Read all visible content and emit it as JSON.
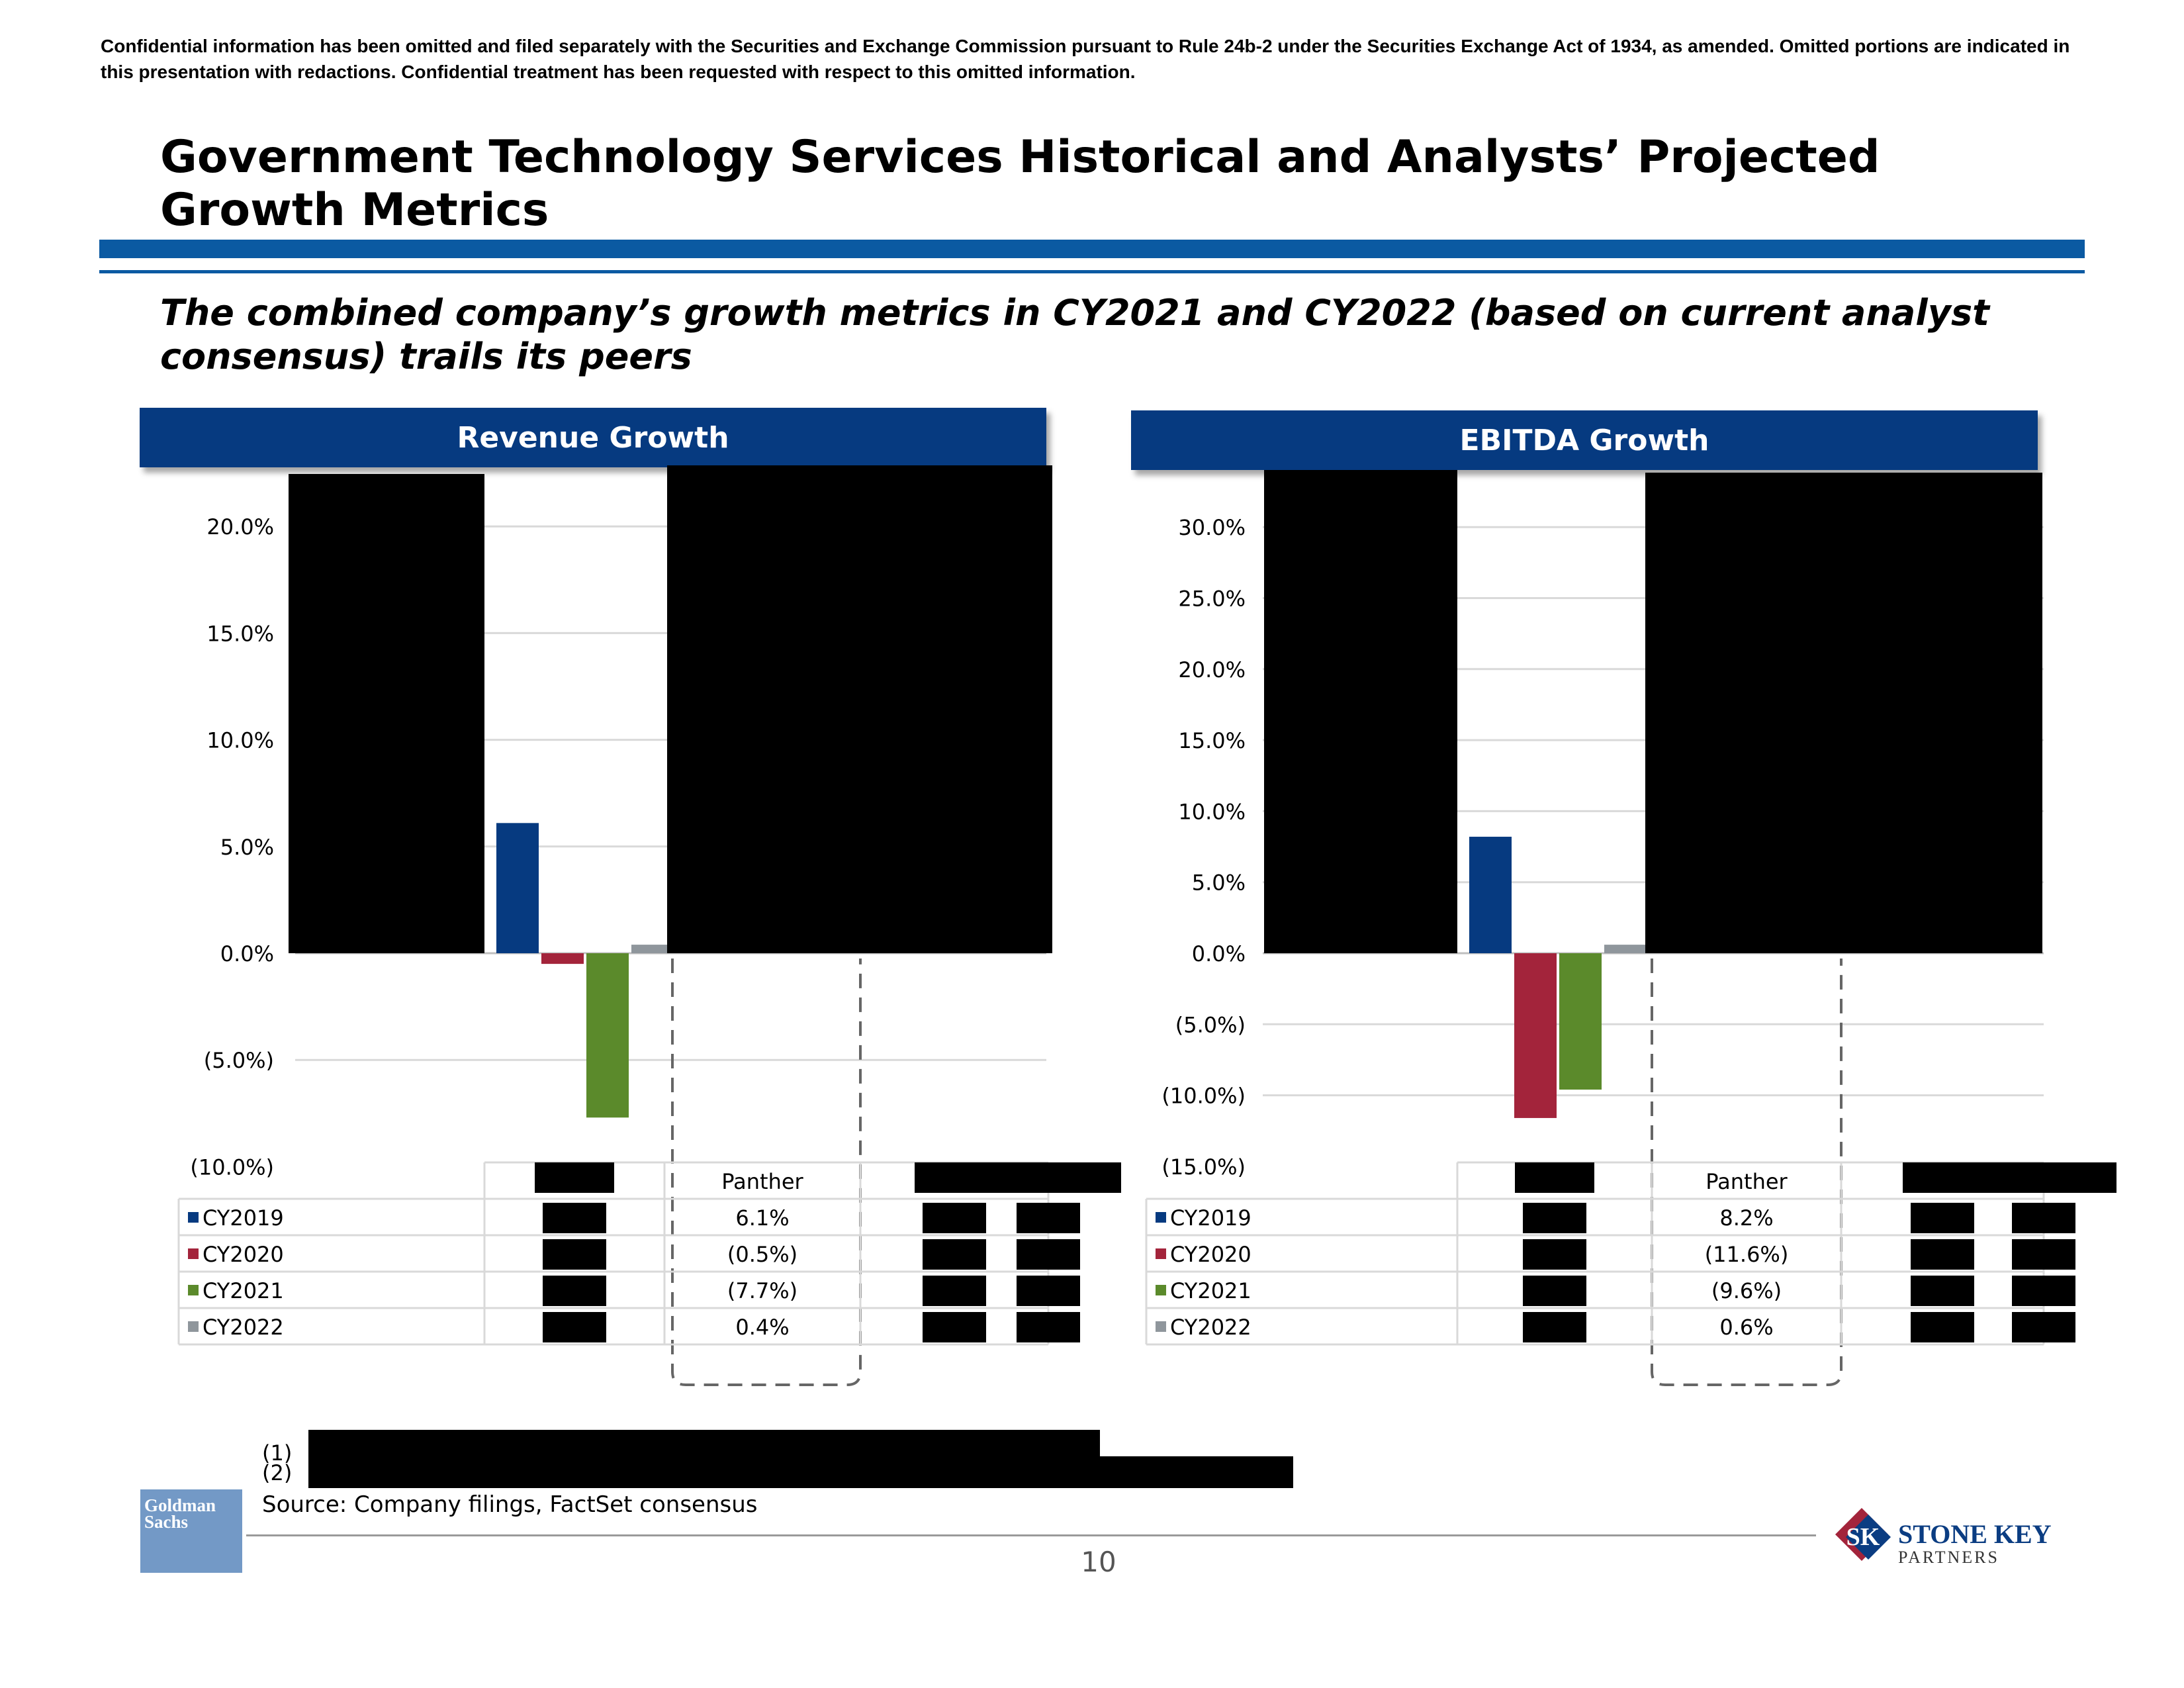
{
  "disclaimer": "Confidential information has been omitted and filed separately with the Securities and Exchange Commission pursuant to Rule 24b-2 under the Securities Exchange Act of 1934, as amended. Omitted portions are indicated in this presentation with redactions. Confidential treatment has been requested with respect to this omitted information.",
  "title": "Government Technology Services Historical and Analysts’ Projected Growth Metrics",
  "subtitle": "The combined company’s growth metrics in CY2021 and CY2022 (based on current analyst consensus) trails its peers",
  "colors": {
    "header_bg": "#063a80",
    "rule": "#0b5aa2",
    "CY2019": "#063a80",
    "CY2020": "#a3243b",
    "CY2021": "#5b8a2b",
    "CY2022": "#8f969c",
    "redaction": "#000000",
    "gs_logo": "#7399c6"
  },
  "chart_data": [
    {
      "type": "bar",
      "title": "Revenue Growth",
      "categories": [
        "[Redacted]",
        "Panther",
        "[Redacted]",
        "[Redacted]"
      ],
      "series": [
        {
          "name": "CY2019",
          "values": [
            null,
            6.1,
            null,
            null
          ]
        },
        {
          "name": "CY2020",
          "values": [
            null,
            -0.5,
            null,
            null
          ]
        },
        {
          "name": "CY2021",
          "values": [
            null,
            -7.7,
            null,
            null
          ]
        },
        {
          "name": "CY2022",
          "values": [
            null,
            0.4,
            null,
            null
          ]
        }
      ],
      "value_labels": {
        "CY2019": "6.1%",
        "CY2020": "(0.5%)",
        "CY2021": "(7.7%)",
        "CY2022": "0.4%"
      },
      "yticks": [
        "20.0%",
        "15.0%",
        "10.0%",
        "5.0%",
        "0.0%",
        "(5.0%)",
        "(10.0%)"
      ],
      "ylim": [
        -10,
        22
      ],
      "xlabel": "",
      "ylabel": "",
      "grid": true,
      "legend": "data-table-left"
    },
    {
      "type": "bar",
      "title": "EBITDA Growth",
      "categories": [
        "[Redacted]",
        "Panther",
        "[Redacted]",
        "[Redacted]"
      ],
      "series": [
        {
          "name": "CY2019",
          "values": [
            null,
            8.2,
            null,
            null
          ]
        },
        {
          "name": "CY2020",
          "values": [
            null,
            -11.6,
            null,
            null
          ]
        },
        {
          "name": "CY2021",
          "values": [
            null,
            -9.6,
            null,
            null
          ]
        },
        {
          "name": "CY2022",
          "values": [
            null,
            0.6,
            null,
            null
          ]
        }
      ],
      "value_labels": {
        "CY2019": "8.2%",
        "CY2020": "(11.6%)",
        "CY2021": "(9.6%)",
        "CY2022": "0.6%"
      },
      "yticks": [
        "30.0%",
        "25.0%",
        "20.0%",
        "15.0%",
        "10.0%",
        "5.0%",
        "0.0%",
        "(5.0%)",
        "(10.0%)",
        "(15.0%)"
      ],
      "ylim": [
        -15,
        34
      ],
      "xlabel": "",
      "ylabel": "",
      "grid": true,
      "legend": "data-table-left"
    }
  ],
  "footnotes": [
    "(1)",
    "(2)"
  ],
  "source": "Source: Company filings, FactSet consensus",
  "page_number": "10",
  "logos": {
    "goldman": "Goldman Sachs",
    "stone_key": "STONE KEY",
    "stone_key_sub": "PARTNERS",
    "stone_key_mark": "SK"
  }
}
